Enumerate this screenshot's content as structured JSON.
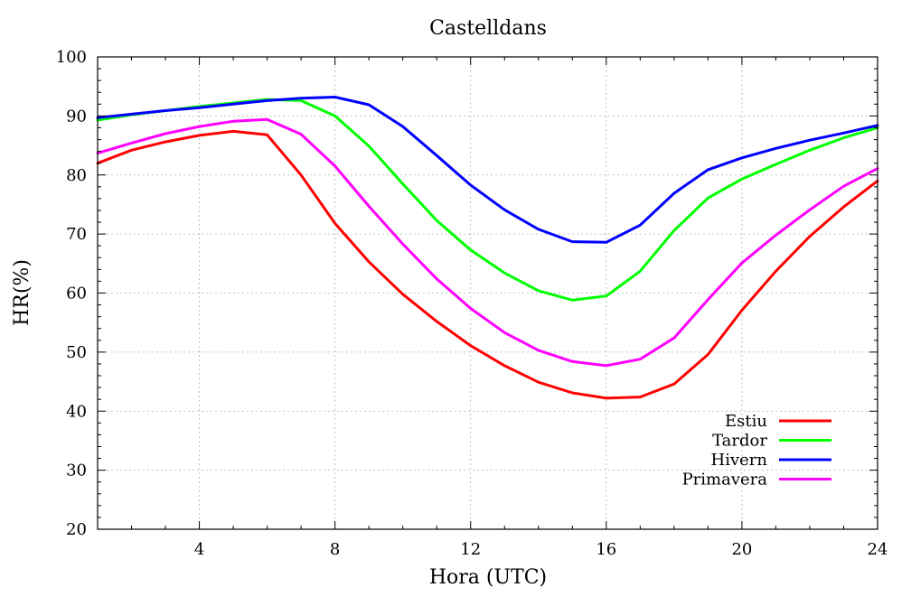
{
  "chart_data": {
    "type": "line",
    "title": "Castelldans",
    "xlabel": "Hora (UTC)",
    "ylabel": "HR(%)",
    "xlim": [
      1,
      24
    ],
    "ylim": [
      20,
      100
    ],
    "xticks": [
      4,
      8,
      12,
      16,
      20,
      24
    ],
    "yticks": [
      20,
      30,
      40,
      50,
      60,
      70,
      80,
      90,
      100
    ],
    "grid": true,
    "legend_position": "bottom-right",
    "x": [
      1,
      2,
      3,
      4,
      5,
      6,
      7,
      8,
      9,
      10,
      11,
      12,
      13,
      14,
      15,
      16,
      17,
      18,
      19,
      20,
      21,
      22,
      23,
      24
    ],
    "series": [
      {
        "name": "Estiu",
        "color": "#ff0000",
        "values": [
          82.0,
          84.2,
          85.6,
          86.7,
          87.4,
          86.8,
          80.0,
          71.8,
          65.3,
          59.8,
          55.2,
          51.1,
          47.7,
          44.9,
          43.1,
          42.2,
          42.4,
          44.6,
          49.6,
          57.1,
          63.7,
          69.6,
          74.6,
          79.0
        ]
      },
      {
        "name": "Tardor",
        "color": "#00ff00",
        "values": [
          89.3,
          90.2,
          90.9,
          91.6,
          92.2,
          92.8,
          92.6,
          90.0,
          84.9,
          78.5,
          72.3,
          67.3,
          63.4,
          60.4,
          58.8,
          59.5,
          63.7,
          70.6,
          76.1,
          79.3,
          81.8,
          84.2,
          86.3,
          88.0
        ]
      },
      {
        "name": "Hivern",
        "color": "#0000ff",
        "values": [
          89.7,
          90.3,
          90.9,
          91.4,
          92.0,
          92.6,
          93.0,
          93.2,
          91.9,
          88.2,
          83.3,
          78.3,
          74.1,
          70.8,
          68.7,
          68.6,
          71.5,
          76.9,
          80.9,
          82.9,
          84.5,
          85.9,
          87.1,
          88.4
        ]
      },
      {
        "name": "Primavera",
        "color": "#ff00ff",
        "values": [
          83.7,
          85.4,
          87.0,
          88.2,
          89.1,
          89.4,
          86.9,
          81.5,
          74.7,
          68.3,
          62.4,
          57.4,
          53.3,
          50.3,
          48.4,
          47.7,
          48.8,
          52.4,
          58.9,
          65.1,
          69.8,
          74.1,
          78.1,
          81.1
        ]
      }
    ]
  }
}
